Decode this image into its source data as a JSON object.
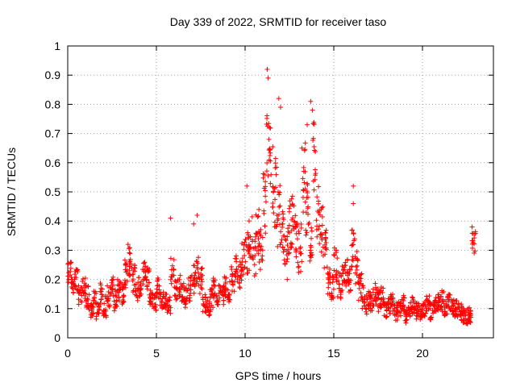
{
  "chart_data": {
    "type": "scatter",
    "title": "Day 339 of 2022, SRMTID for receiver taso",
    "xlabel": "GPS time / hours",
    "ylabel": "SRMTID / TECUs",
    "xlim": [
      0,
      24
    ],
    "ylim": [
      0,
      1
    ],
    "xticks": [
      0,
      5,
      10,
      15,
      20
    ],
    "xtick_labels": [
      "0",
      "5",
      "10",
      "15",
      "20"
    ],
    "yticks": [
      0,
      0.1,
      0.2,
      0.3,
      0.4,
      0.5,
      0.6,
      0.7,
      0.8,
      0.9,
      1
    ],
    "ytick_labels": [
      "0",
      "0.1",
      "0.2",
      "0.3",
      "0.4",
      "0.5",
      "0.6",
      "0.7",
      "0.8",
      "0.9",
      "1"
    ],
    "grid": true,
    "marker": "+",
    "color": "#ff0000",
    "series": [
      {
        "name": "SRMTID",
        "x": [
          0.0,
          0.2,
          0.4,
          0.6,
          0.8,
          1.0,
          1.2,
          1.4,
          1.6,
          1.8,
          2.0,
          2.2,
          2.4,
          2.6,
          2.8,
          3.0,
          3.2,
          3.4,
          3.6,
          3.8,
          4.0,
          4.2,
          4.4,
          4.6,
          4.8,
          5.0,
          5.2,
          5.4,
          5.6,
          5.8,
          6.0,
          6.2,
          6.4,
          6.6,
          6.8,
          7.0,
          7.2,
          7.4,
          7.6,
          7.8,
          8.0,
          8.2,
          8.4,
          8.6,
          8.8,
          9.0,
          9.2,
          9.4,
          9.6,
          9.8,
          10.0,
          10.2,
          10.4,
          10.6,
          10.8,
          11.0,
          11.2,
          11.4,
          11.6,
          11.8,
          12.0,
          12.2,
          12.4,
          12.6,
          12.8,
          13.0,
          13.2,
          13.4,
          13.6,
          13.8,
          14.0,
          14.2,
          14.4,
          14.6,
          14.8,
          15.0,
          15.2,
          15.4,
          15.6,
          15.8,
          16.0,
          16.2,
          16.4,
          16.6,
          16.8,
          17.0,
          17.2,
          17.4,
          17.6,
          17.8,
          18.0,
          18.2,
          18.4,
          18.6,
          18.8,
          19.0,
          19.2,
          19.4,
          19.6,
          19.8,
          20.0,
          20.2,
          20.4,
          20.6,
          20.8,
          21.0,
          21.2,
          21.4,
          21.6,
          21.8,
          22.0,
          22.2,
          22.4,
          22.6,
          22.8
        ],
        "y": [
          0.22,
          0.18,
          0.2,
          0.15,
          0.17,
          0.14,
          0.1,
          0.12,
          0.09,
          0.15,
          0.11,
          0.14,
          0.17,
          0.13,
          0.16,
          0.15,
          0.22,
          0.27,
          0.2,
          0.16,
          0.18,
          0.22,
          0.2,
          0.14,
          0.12,
          0.17,
          0.13,
          0.12,
          0.11,
          0.23,
          0.16,
          0.18,
          0.15,
          0.14,
          0.17,
          0.2,
          0.23,
          0.19,
          0.12,
          0.1,
          0.13,
          0.17,
          0.15,
          0.14,
          0.18,
          0.16,
          0.2,
          0.24,
          0.22,
          0.27,
          0.3,
          0.33,
          0.28,
          0.35,
          0.32,
          0.45,
          0.68,
          0.58,
          0.5,
          0.42,
          0.34,
          0.3,
          0.38,
          0.4,
          0.34,
          0.3,
          0.55,
          0.45,
          0.32,
          0.62,
          0.42,
          0.37,
          0.3,
          0.2,
          0.18,
          0.25,
          0.18,
          0.2,
          0.22,
          0.19,
          0.3,
          0.24,
          0.17,
          0.14,
          0.12,
          0.13,
          0.15,
          0.13,
          0.14,
          0.1,
          0.11,
          0.12,
          0.09,
          0.1,
          0.12,
          0.08,
          0.1,
          0.11,
          0.09,
          0.08,
          0.1,
          0.12,
          0.09,
          0.11,
          0.12,
          0.13,
          0.1,
          0.12,
          0.11,
          0.1,
          0.09,
          0.08,
          0.07,
          0.08,
          0.33
        ],
        "spread": [
          0.04,
          0.04,
          0.04,
          0.04,
          0.04,
          0.04,
          0.03,
          0.04,
          0.03,
          0.04,
          0.04,
          0.04,
          0.04,
          0.04,
          0.04,
          0.04,
          0.05,
          0.06,
          0.05,
          0.04,
          0.04,
          0.04,
          0.04,
          0.03,
          0.03,
          0.04,
          0.03,
          0.03,
          0.03,
          0.05,
          0.04,
          0.04,
          0.04,
          0.04,
          0.05,
          0.05,
          0.05,
          0.05,
          0.03,
          0.03,
          0.04,
          0.04,
          0.04,
          0.04,
          0.04,
          0.04,
          0.05,
          0.05,
          0.05,
          0.06,
          0.08,
          0.1,
          0.08,
          0.1,
          0.1,
          0.12,
          0.15,
          0.14,
          0.12,
          0.11,
          0.1,
          0.1,
          0.1,
          0.1,
          0.09,
          0.09,
          0.12,
          0.1,
          0.08,
          0.12,
          0.1,
          0.08,
          0.07,
          0.06,
          0.05,
          0.06,
          0.05,
          0.05,
          0.05,
          0.05,
          0.07,
          0.06,
          0.05,
          0.04,
          0.04,
          0.04,
          0.04,
          0.04,
          0.04,
          0.03,
          0.03,
          0.03,
          0.03,
          0.03,
          0.03,
          0.03,
          0.03,
          0.03,
          0.03,
          0.03,
          0.03,
          0.03,
          0.03,
          0.03,
          0.03,
          0.04,
          0.03,
          0.03,
          0.03,
          0.03,
          0.03,
          0.03,
          0.03,
          0.03,
          0.04
        ]
      }
    ],
    "peaks": [
      {
        "x": 11.25,
        "y": 0.92
      },
      {
        "x": 11.3,
        "y": 0.89
      },
      {
        "x": 11.9,
        "y": 0.82
      },
      {
        "x": 12.0,
        "y": 0.79
      },
      {
        "x": 13.7,
        "y": 0.81
      },
      {
        "x": 13.8,
        "y": 0.78
      },
      {
        "x": 13.5,
        "y": 0.73
      },
      {
        "x": 13.2,
        "y": 0.65
      },
      {
        "x": 16.1,
        "y": 0.52
      },
      {
        "x": 16.1,
        "y": 0.46
      },
      {
        "x": 5.8,
        "y": 0.41
      },
      {
        "x": 7.1,
        "y": 0.39
      },
      {
        "x": 7.3,
        "y": 0.42
      },
      {
        "x": 22.8,
        "y": 0.38
      },
      {
        "x": 3.4,
        "y": 0.32
      },
      {
        "x": 10.1,
        "y": 0.52
      }
    ]
  }
}
